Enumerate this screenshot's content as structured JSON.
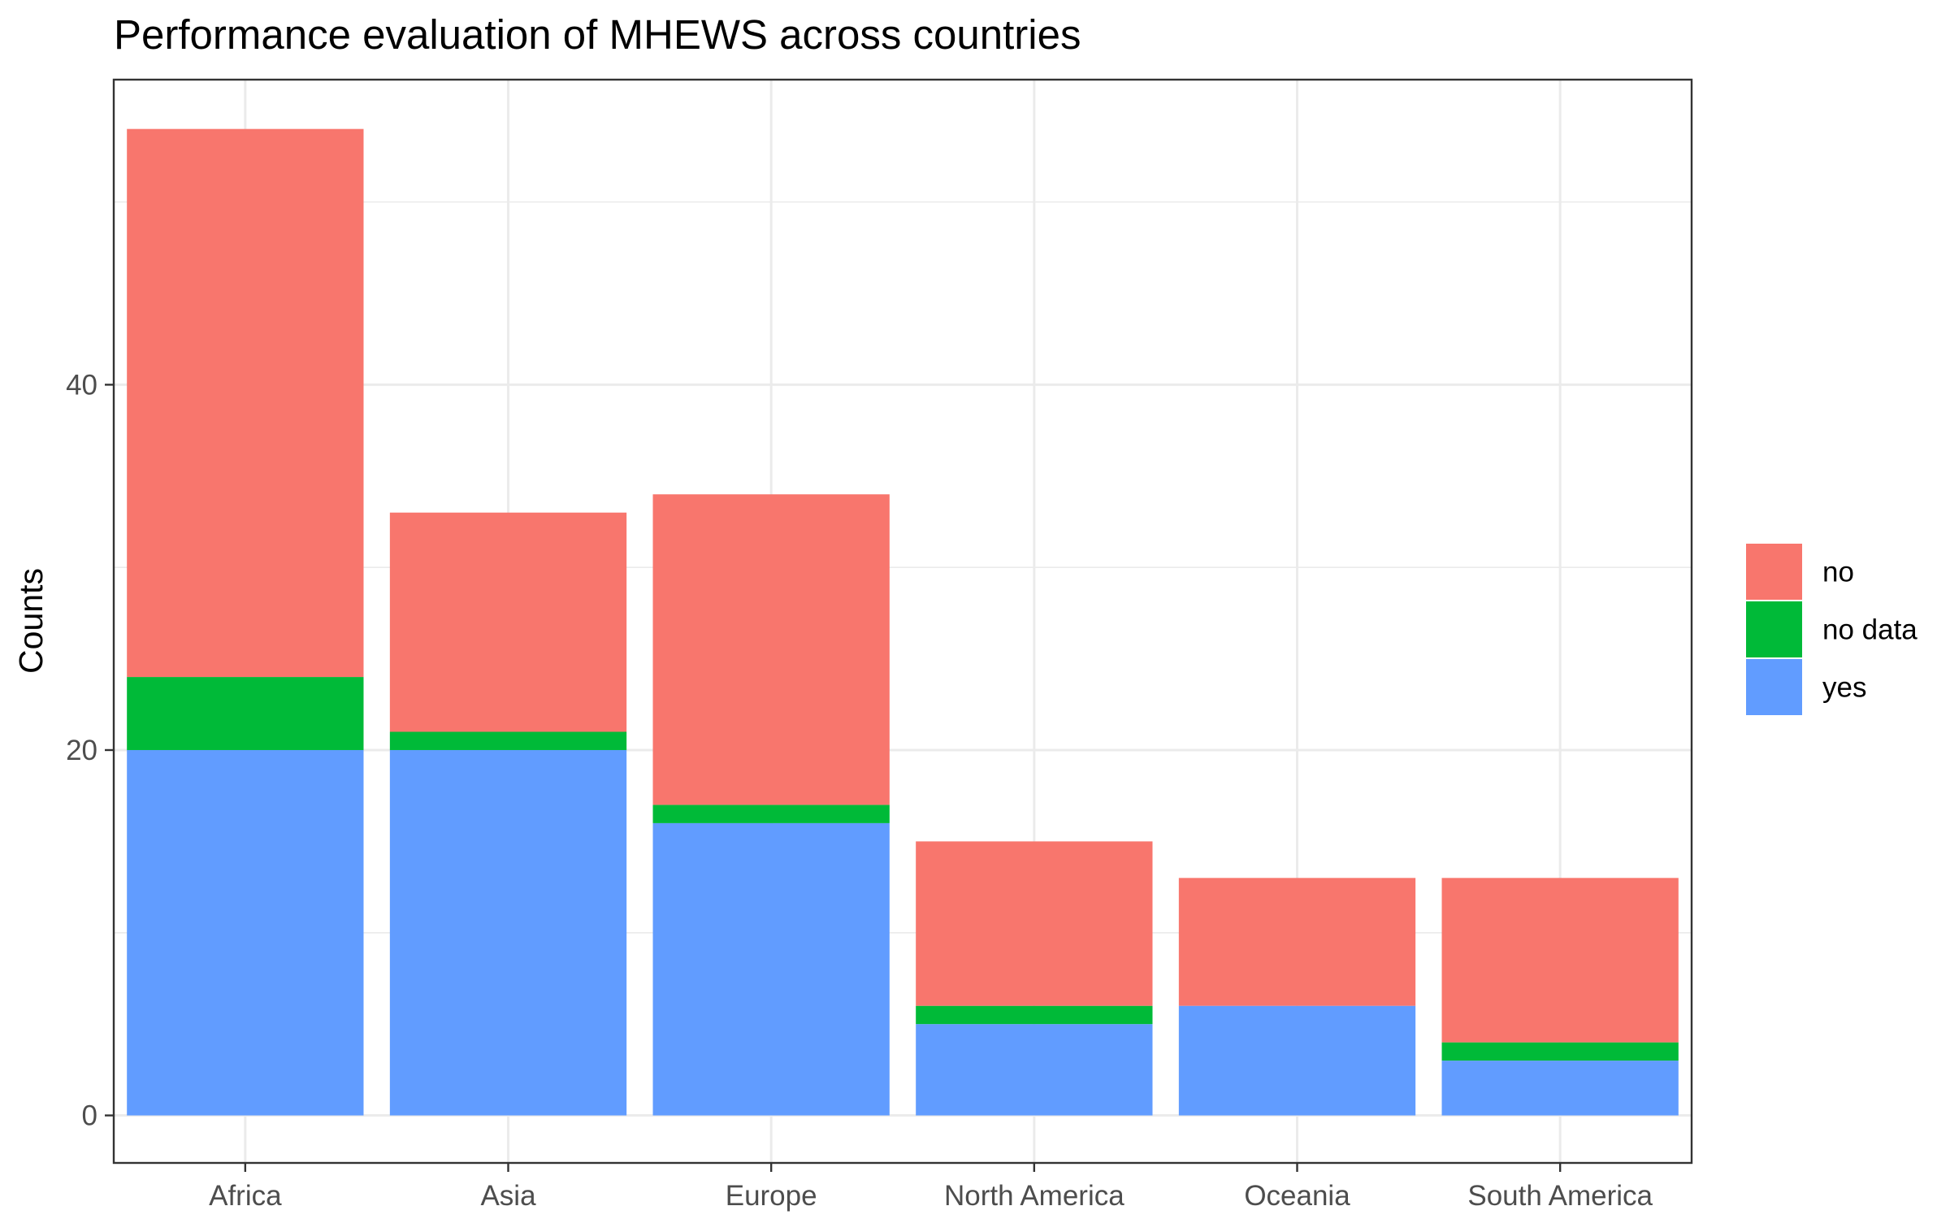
{
  "chart_data": {
    "type": "bar",
    "stacked": true,
    "title": "Performance evaluation of MHEWS across countries",
    "xlabel": "",
    "ylabel": "Counts",
    "categories": [
      "Africa",
      "Asia",
      "Europe",
      "North America",
      "Oceania",
      "South America"
    ],
    "series": [
      {
        "name": "yes",
        "color": "#619CFF",
        "values": [
          20,
          20,
          16,
          5,
          6,
          3
        ]
      },
      {
        "name": "no data",
        "color": "#00BA38",
        "values": [
          4,
          1,
          1,
          1,
          0,
          1
        ]
      },
      {
        "name": "no",
        "color": "#F8766D",
        "values": [
          30,
          12,
          17,
          9,
          7,
          9
        ]
      }
    ],
    "legend_order": [
      "no",
      "no data",
      "yes"
    ],
    "ylim": [
      -2.6,
      56.7
    ],
    "yticks": [
      0,
      20,
      40
    ],
    "grid": true,
    "legend_position": "right"
  }
}
